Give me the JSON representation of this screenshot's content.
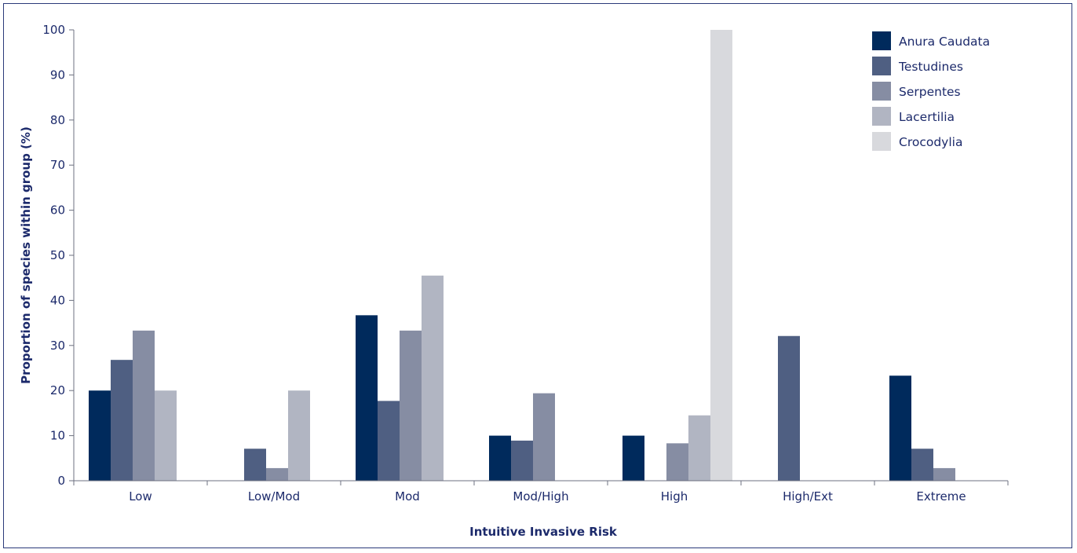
{
  "chart_data": {
    "type": "bar",
    "title": "",
    "xlabel": "Intuitive Invasive Risk",
    "ylabel": "Proportion of species within group (%)",
    "ylim": [
      0,
      100
    ],
    "yticks": [
      0,
      10,
      20,
      30,
      40,
      50,
      60,
      70,
      80,
      90,
      100
    ],
    "grid": false,
    "legend_position": "top-right",
    "categories": [
      "Low",
      "Low/Mod",
      "Mod",
      "Mod/High",
      "High",
      "High/Ext",
      "Extreme"
    ],
    "series": [
      {
        "name": "Anura Caudata",
        "color": "#002a5c",
        "values": [
          20,
          0,
          36.7,
          10,
          10,
          0,
          23.3
        ]
      },
      {
        "name": "Testudines",
        "color": "#4f5f82",
        "values": [
          26.8,
          7.1,
          17.7,
          8.9,
          0,
          32.1,
          7.1
        ]
      },
      {
        "name": "Serpentes",
        "color": "#868da3",
        "values": [
          33.3,
          2.8,
          33.3,
          19.4,
          8.3,
          0,
          2.8
        ]
      },
      {
        "name": "Lacertilia",
        "color": "#b1b5c2",
        "values": [
          20,
          20,
          45.5,
          0,
          14.5,
          0,
          0
        ]
      },
      {
        "name": "Crocodylia",
        "color": "#d8d9dd",
        "values": [
          0,
          0,
          0,
          0,
          100,
          0,
          0
        ]
      }
    ]
  }
}
